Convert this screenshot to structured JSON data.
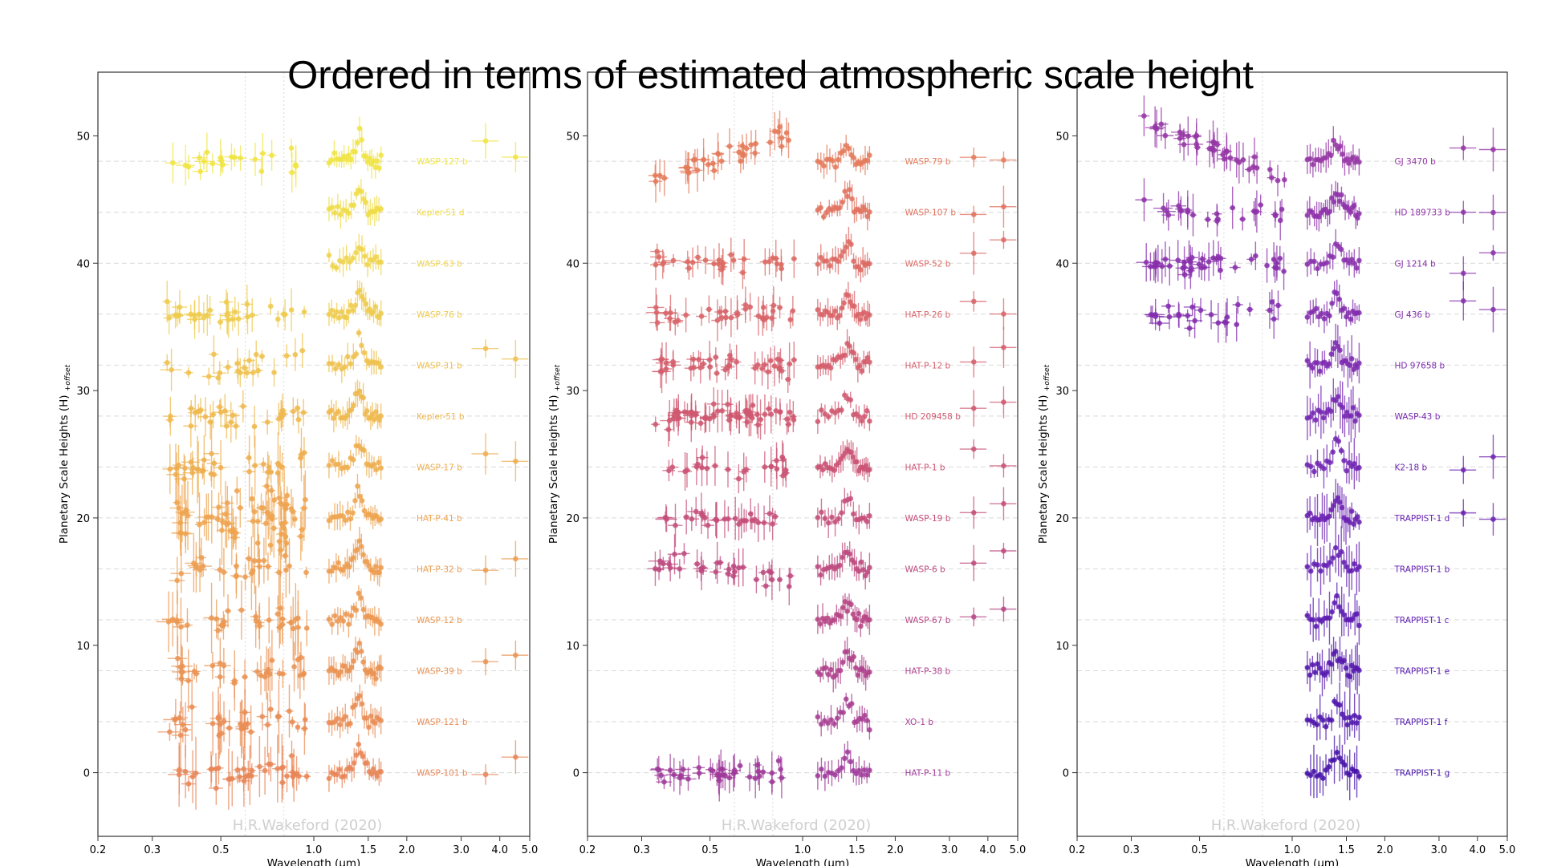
{
  "title": "Ordered in terms of estimated atmospheric scale height",
  "colors": {
    "background": "#ffffff",
    "grid": "#d9d9d9",
    "watermark": "#cfcfcf",
    "gradient_yellow": "#f0e442",
    "gradient_orange": "#e98d4f",
    "gradient_pink": "#c94f7c",
    "gradient_purple": "#7e23b5",
    "gradient_indigo": "#3f0f9e"
  },
  "chart_data": [
    {
      "type": "scatter",
      "panel": "left",
      "xlabel": "Wavelength (µm)",
      "ylabel": "Planetary Scale Heights (H)",
      "ylabel_sub": "+offset",
      "xscale": "log",
      "xlim": [
        0.2,
        5.0
      ],
      "ylim": [
        -5,
        55
      ],
      "xticks": [
        "0.2",
        "0.3",
        "0.5",
        "1.0",
        "1.5",
        "2.0",
        "3.0",
        "4.0",
        "5.0"
      ],
      "yticks": [
        "0",
        "10",
        "20",
        "30",
        "40",
        "50"
      ],
      "watermark": "H.R.Wakeford (2020)",
      "series": [
        {
          "name": "WASP-127 b",
          "offset": 48,
          "color": "#f0e442"
        },
        {
          "name": "Kepler-51 d",
          "offset": 44,
          "color": "#f0dc48"
        },
        {
          "name": "WASP-63 b",
          "offset": 40,
          "color": "#efd44a"
        },
        {
          "name": "WASP-76 b",
          "offset": 36,
          "color": "#efcb4c"
        },
        {
          "name": "WASP-31 b",
          "offset": 32,
          "color": "#efc14d"
        },
        {
          "name": "Kepler-51 b",
          "offset": 28,
          "color": "#efb84e"
        },
        {
          "name": "WASP-17 b",
          "offset": 24,
          "color": "#eeae4f"
        },
        {
          "name": "HAT-P-41 b",
          "offset": 20,
          "color": "#eea450"
        },
        {
          "name": "HAT-P-32 b",
          "offset": 16,
          "color": "#ec9e51"
        },
        {
          "name": "WASP-12 b",
          "offset": 12,
          "color": "#eb9852"
        },
        {
          "name": "WASP-39 b",
          "offset": 8,
          "color": "#ea9354"
        },
        {
          "name": "WASP-121 b",
          "offset": 4,
          "color": "#e98d55"
        },
        {
          "name": "WASP-101 b",
          "offset": 0,
          "color": "#e88657"
        }
      ]
    },
    {
      "type": "scatter",
      "panel": "middle",
      "xlabel": "Wavelength (µm)",
      "ylabel": "Planetary Scale Heights (H)",
      "ylabel_sub": "+offset",
      "xscale": "log",
      "xlim": [
        0.2,
        5.0
      ],
      "ylim": [
        -5,
        55
      ],
      "xticks": [
        "0.2",
        "0.3",
        "0.5",
        "1.0",
        "1.5",
        "2.0",
        "3.0",
        "4.0",
        "5.0"
      ],
      "yticks": [
        "0",
        "10",
        "20",
        "30",
        "40",
        "50"
      ],
      "watermark": "H.R.Wakeford (2020)",
      "series": [
        {
          "name": "WASP-79 b",
          "offset": 48,
          "color": "#e47a5a"
        },
        {
          "name": "WASP-107 b",
          "offset": 44,
          "color": "#e0725f"
        },
        {
          "name": "WASP-52 b",
          "offset": 40,
          "color": "#dc6a63"
        },
        {
          "name": "HAT-P-26 b",
          "offset": 36,
          "color": "#d86468"
        },
        {
          "name": "HAT-P-12 b",
          "offset": 32,
          "color": "#d45e6c"
        },
        {
          "name": "HD 209458 b",
          "offset": 28,
          "color": "#cf5870"
        },
        {
          "name": "HAT-P-1 b",
          "offset": 24,
          "color": "#ca5374"
        },
        {
          "name": "WASP-19 b",
          "offset": 20,
          "color": "#c44e79"
        },
        {
          "name": "WASP-6 b",
          "offset": 16,
          "color": "#bd4a7f"
        },
        {
          "name": "WASP-67 b",
          "offset": 12,
          "color": "#b64685"
        },
        {
          "name": "HAT-P-38 b",
          "offset": 8,
          "color": "#af428c"
        },
        {
          "name": "XO-1 b",
          "offset": 4,
          "color": "#a73e93"
        },
        {
          "name": "HAT-P-11 b",
          "offset": 0,
          "color": "#9f3a9a"
        }
      ]
    },
    {
      "type": "scatter",
      "panel": "right",
      "xlabel": "Wavelength (µm)",
      "ylabel": "Planetary Scale Heights (H)",
      "ylabel_sub": "+offset",
      "xscale": "log",
      "xlim": [
        0.2,
        5.0
      ],
      "ylim": [
        -5,
        55
      ],
      "xticks": [
        "0.2",
        "0.3",
        "0.5",
        "1.0",
        "1.5",
        "2.0",
        "3.0",
        "4.0",
        "5.0"
      ],
      "yticks": [
        "0",
        "10",
        "20",
        "30",
        "40",
        "50"
      ],
      "watermark": "H.R.Wakeford (2020)",
      "series": [
        {
          "name": "GJ 3470 b",
          "offset": 48,
          "color": "#9536a5"
        },
        {
          "name": "HD 189733 b",
          "offset": 44,
          "color": "#8e33a9"
        },
        {
          "name": "GJ 1214 b",
          "offset": 40,
          "color": "#8830ac"
        },
        {
          "name": "GJ 436 b",
          "offset": 36,
          "color": "#822dae"
        },
        {
          "name": "HD 97658 b",
          "offset": 32,
          "color": "#7c2ab0"
        },
        {
          "name": "WASP-43 b",
          "offset": 28,
          "color": "#7627b1"
        },
        {
          "name": "K2-18 b",
          "offset": 24,
          "color": "#7024b2"
        },
        {
          "name": "TRAPPIST-1 d",
          "offset": 20,
          "color": "#6a21b2"
        },
        {
          "name": "TRAPPIST-1 b",
          "offset": 16,
          "color": "#631eb1"
        },
        {
          "name": "TRAPPIST-1 c",
          "offset": 12,
          "color": "#5c1bb0"
        },
        {
          "name": "TRAPPIST-1 e",
          "offset": 8,
          "color": "#5518ae"
        },
        {
          "name": "TRAPPIST-1 f",
          "offset": 4,
          "color": "#4d15ab"
        },
        {
          "name": "TRAPPIST-1 g",
          "offset": 0,
          "color": "#4512a8"
        }
      ]
    }
  ]
}
